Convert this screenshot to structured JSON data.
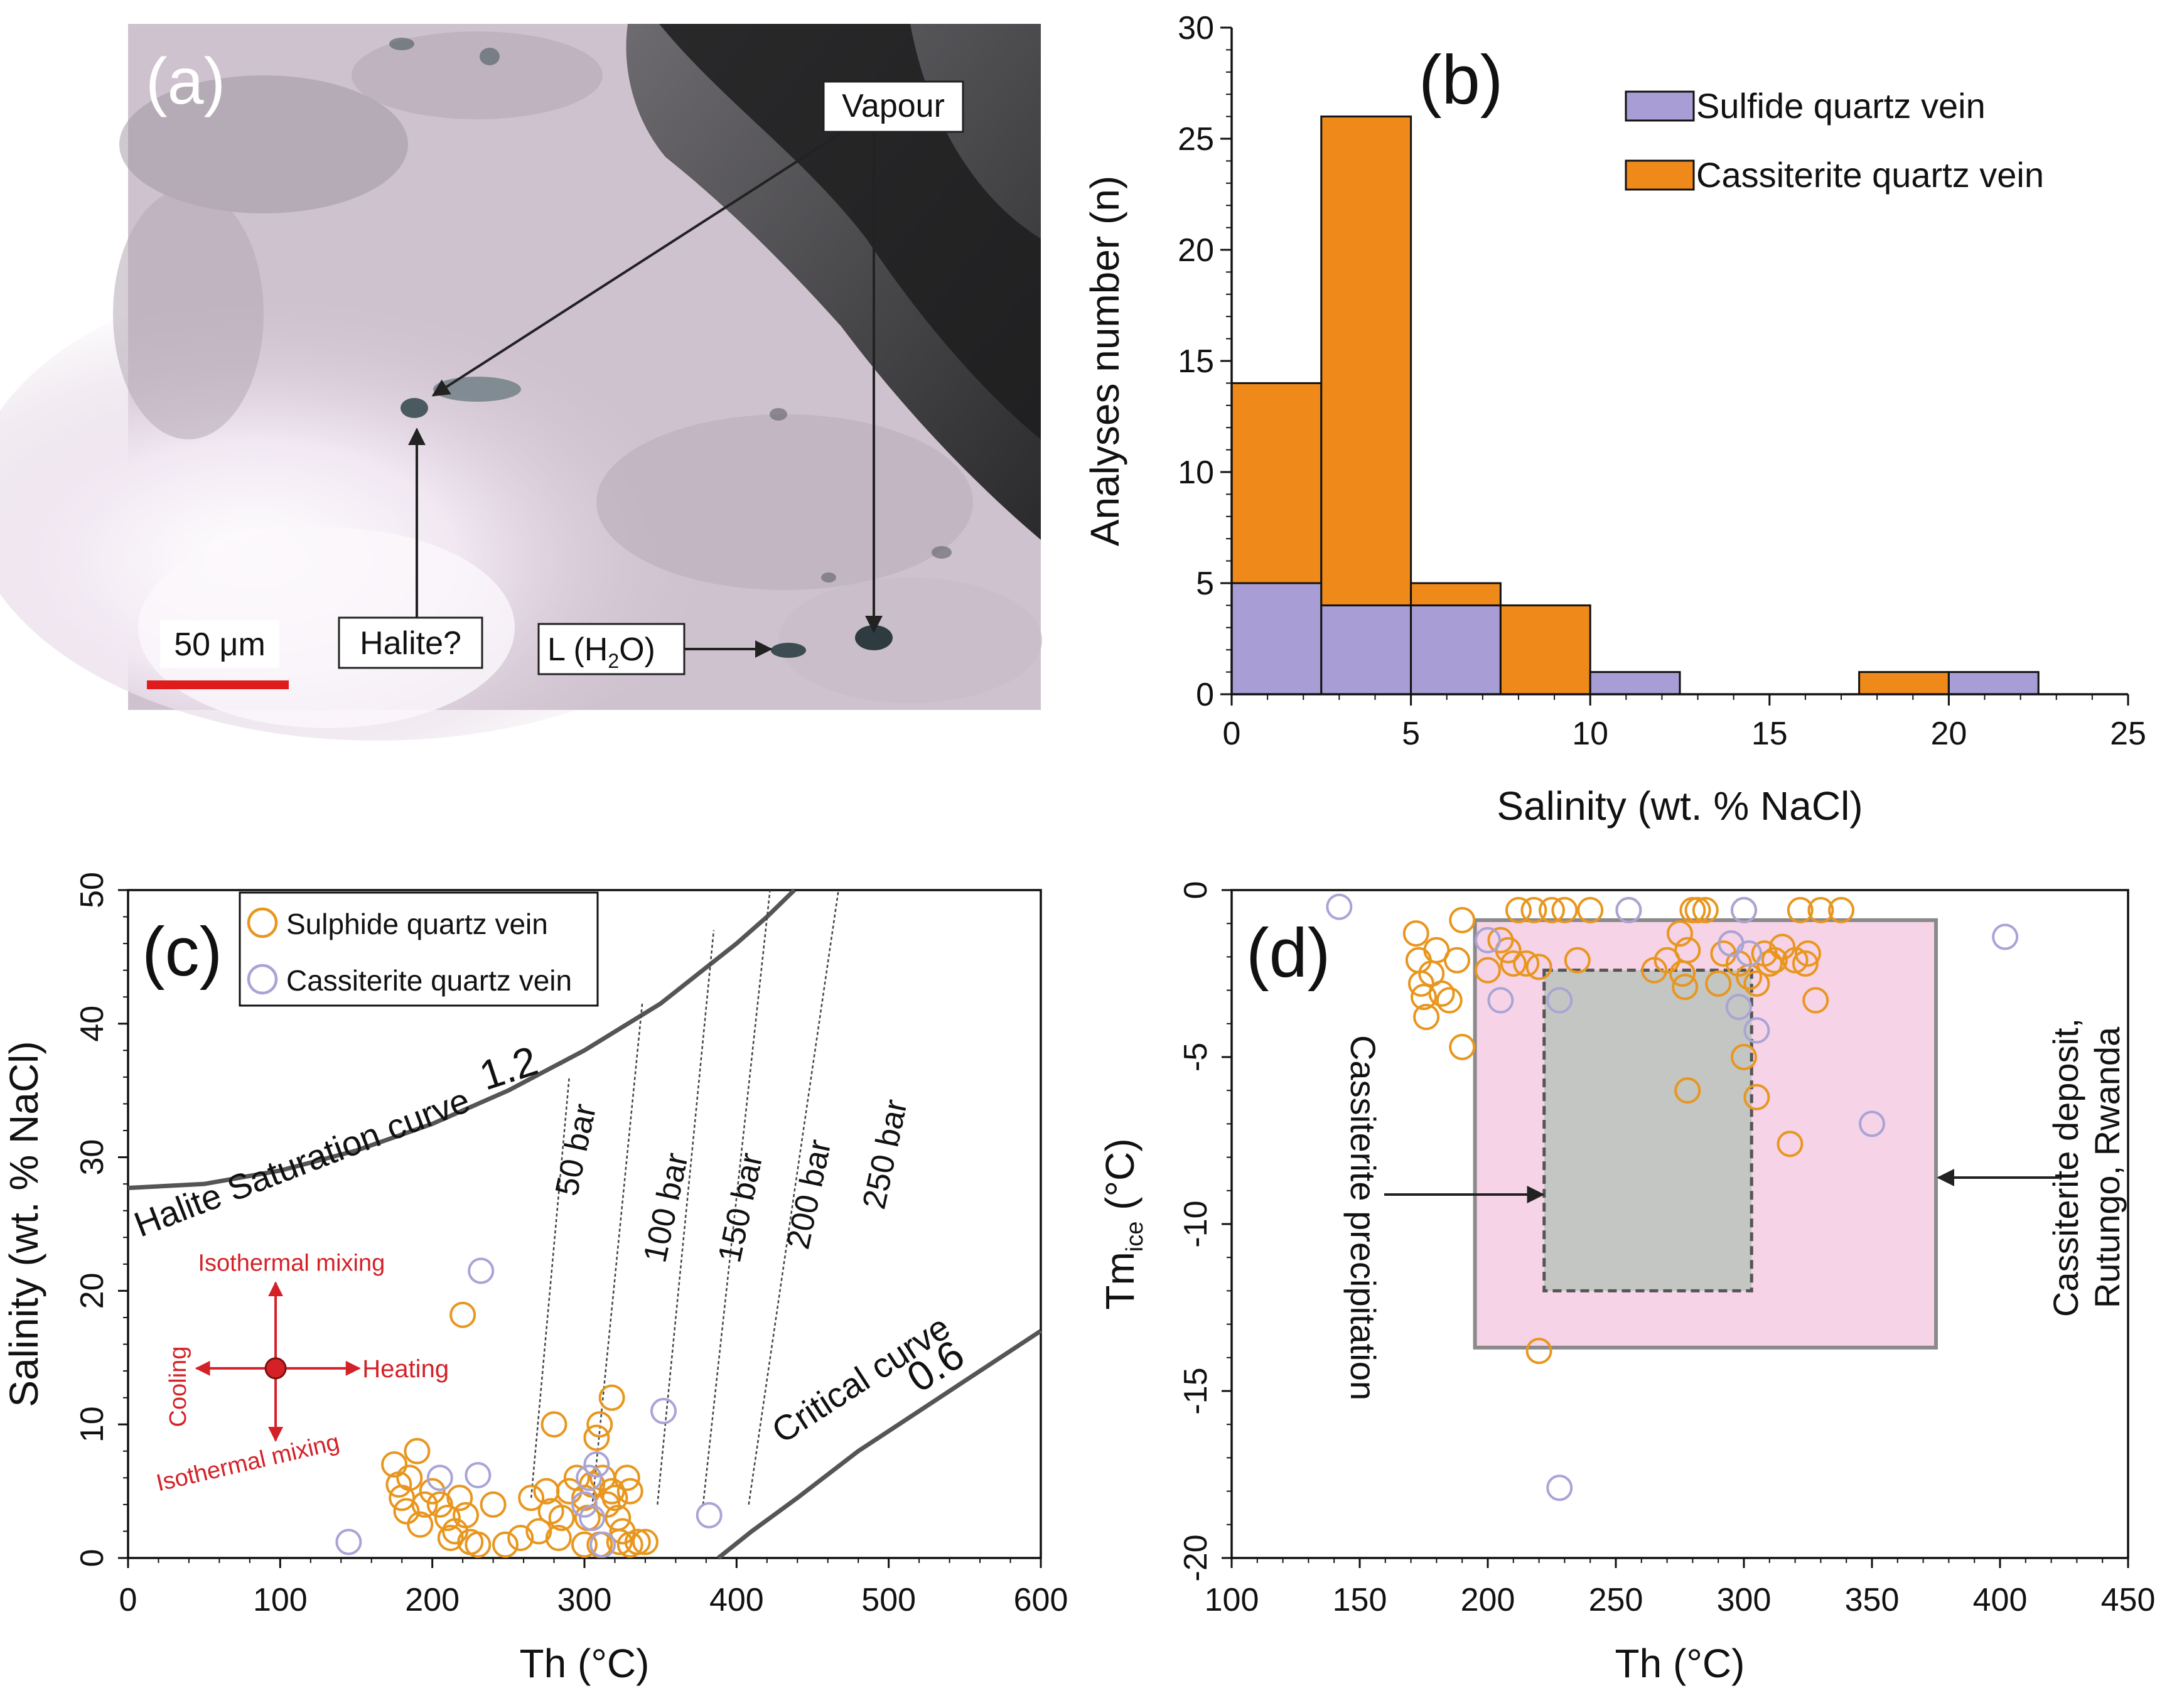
{
  "panels": {
    "a": {
      "label": "(a)",
      "annotations": {
        "vapour": "Vapour",
        "halite": "Halite?",
        "liquid_main": "L (H",
        "liquid_sub": "2",
        "liquid_end": "O)"
      },
      "scale_bar": "50 μm"
    },
    "d_annotations": {
      "precipitation": "Cassiterite precipitation",
      "deposit_line1": "Cassiterite deposit,",
      "deposit_line2": "Rutungo, Rwanda",
      "ylabel_main": "Tm",
      "ylabel_sub": "ice",
      "ylabel_end": " (°C)"
    },
    "c_annotations": {
      "halite_curve": "Halite  Saturation curve",
      "halite_value": "1.2",
      "critical_curve": "Critical curve",
      "critical_value": "0.6",
      "isobars": [
        "50 bar",
        "100 bar",
        "150 bar",
        "200 bar",
        "250 bar"
      ],
      "arrows": {
        "isothermal_up": "Isothermal mixing",
        "isothermal_down": "Isothermal mixing",
        "heating": "Heating",
        "cooling": "Cooling"
      }
    }
  },
  "colors": {
    "sulfide": "#a89dd4",
    "cassiterite": "#ef8a1a",
    "orange_marker": "#e8961e",
    "purple_marker": "#a8a4d6",
    "pink_box": "#f6d3e6",
    "gray_box": "#c3c6c2",
    "red": "#d42128"
  },
  "chart_data": [
    {
      "id": "b",
      "type": "bar",
      "panel_label": "(b)",
      "stacked": true,
      "bin_edges": [
        0,
        2.5,
        5,
        7.5,
        10,
        12.5,
        15,
        17.5,
        20,
        22.5
      ],
      "series": [
        {
          "name": "Sulfide quartz vein",
          "values": [
            5,
            4,
            4,
            0,
            1,
            0,
            0,
            0,
            1
          ]
        },
        {
          "name": "Cassiterite quartz vein",
          "values": [
            9,
            22,
            1,
            4,
            0,
            0,
            0,
            1,
            0
          ]
        }
      ],
      "xlabel": "Salinity (wt. % NaCl)",
      "ylabel": "Analyses number (n)",
      "xlim": [
        0,
        25
      ],
      "ylim": [
        0,
        30
      ],
      "xticks": [
        0,
        5,
        10,
        15,
        20,
        25
      ],
      "yticks": [
        0,
        5,
        10,
        15,
        20,
        25,
        30
      ],
      "legend": "top-right"
    },
    {
      "id": "c",
      "type": "scatter",
      "panel_label": "(c)",
      "xlabel": "Th (°C)",
      "ylabel": "Salinity (wt. % NaCl)",
      "xlim": [
        0,
        600
      ],
      "ylim": [
        0,
        50
      ],
      "xticks": [
        0,
        100,
        200,
        300,
        400,
        500,
        600
      ],
      "yticks": [
        0,
        10,
        20,
        30,
        40,
        50
      ],
      "legend": "top-left",
      "series": [
        {
          "name": "Sulphide quartz vein",
          "marker": "orange",
          "points": [
            [
              175,
              7
            ],
            [
              178,
              5.5
            ],
            [
              180,
              4.5
            ],
            [
              183,
              3.5
            ],
            [
              185,
              6
            ],
            [
              192,
              2.5
            ],
            [
              195,
              4
            ],
            [
              190,
              8
            ],
            [
              200,
              5
            ],
            [
              205,
              4
            ],
            [
              210,
              3
            ],
            [
              215,
              2
            ],
            [
              218,
              4.5
            ],
            [
              222,
              3.2
            ],
            [
              225,
              1.2
            ],
            [
              212,
              1.5
            ],
            [
              230,
              1
            ],
            [
              240,
              4
            ],
            [
              248,
              1
            ],
            [
              258,
              1.5
            ],
            [
              220,
              18.2
            ],
            [
              265,
              4.5
            ],
            [
              270,
              2
            ],
            [
              275,
              5
            ],
            [
              278,
              3.5
            ],
            [
              280,
              10
            ],
            [
              283,
              1.5
            ],
            [
              285,
              3
            ],
            [
              290,
              5
            ],
            [
              295,
              6
            ],
            [
              300,
              4.5
            ],
            [
              302,
              3
            ],
            [
              305,
              5.5
            ],
            [
              308,
              9
            ],
            [
              310,
              10
            ],
            [
              312,
              6
            ],
            [
              315,
              4
            ],
            [
              318,
              5
            ],
            [
              320,
              4.5
            ],
            [
              322,
              3
            ],
            [
              325,
              2
            ],
            [
              328,
              6
            ],
            [
              300,
              1
            ],
            [
              310,
              1
            ],
            [
              318,
              12
            ],
            [
              323,
              1.2
            ],
            [
              330,
              1
            ],
            [
              335,
              1.2
            ],
            [
              340,
              1.2
            ],
            [
              330,
              5
            ]
          ]
        },
        {
          "name": "Cassiterite quartz vein",
          "marker": "purple",
          "points": [
            [
              145,
              1.2
            ],
            [
              205,
              6
            ],
            [
              230,
              6.2
            ],
            [
              232,
              21.5
            ],
            [
              300,
              4
            ],
            [
              303,
              6
            ],
            [
              305,
              3
            ],
            [
              308,
              7
            ],
            [
              312,
              1
            ],
            [
              352,
              11
            ],
            [
              382,
              3.2
            ]
          ]
        }
      ],
      "curves": [
        {
          "name": "Halite Saturation curve",
          "value": 1.2,
          "points": [
            [
              0,
              27.7
            ],
            [
              50,
              28
            ],
            [
              100,
              29
            ],
            [
              150,
              30.5
            ],
            [
              200,
              32.5
            ],
            [
              250,
              35
            ],
            [
              300,
              38
            ],
            [
              350,
              41.5
            ],
            [
              400,
              46
            ],
            [
              420,
              48
            ],
            [
              438,
              50
            ]
          ]
        },
        {
          "name": "Critical curve",
          "value": 0.6,
          "points": [
            [
              388,
              0
            ],
            [
              410,
              2
            ],
            [
              440,
              4.5
            ],
            [
              480,
              8
            ],
            [
              520,
              11
            ],
            [
              560,
              14
            ],
            [
              600,
              17
            ]
          ]
        }
      ],
      "isobars": [
        {
          "label": "50 bar",
          "from": [
            265,
            4.5
          ],
          "to": [
            290,
            36
          ]
        },
        {
          "label": "100 bar",
          "from": [
            305,
            3.8
          ],
          "to": [
            338,
            41.5
          ]
        },
        {
          "label": "150 bar",
          "from": [
            348,
            4
          ],
          "to": [
            385,
            47
          ]
        },
        {
          "label": "200 bar",
          "from": [
            378,
            4
          ],
          "to": [
            422,
            50
          ]
        },
        {
          "label": "250 bar",
          "from": [
            408,
            4
          ],
          "to": [
            467,
            50
          ]
        }
      ],
      "arrow_origin": [
        97,
        14.2
      ]
    },
    {
      "id": "d",
      "type": "scatter",
      "panel_label": "(d)",
      "xlabel": "Th (°C)",
      "ylabel": "Tm ice (°C)",
      "xlim": [
        100,
        450
      ],
      "ylim": [
        -20,
        0
      ],
      "xticks": [
        100,
        150,
        200,
        250,
        300,
        350,
        400,
        450
      ],
      "yticks": [
        0,
        -5,
        -10,
        -15,
        -20
      ],
      "regions": [
        {
          "name": "Cassiterite deposit, Rutungo, Rwanda",
          "x": [
            195,
            375
          ],
          "y": [
            -13.7,
            -0.9
          ]
        },
        {
          "name": "Cassiterite precipitation",
          "x": [
            222,
            303
          ],
          "y": [
            -12,
            -2.4
          ]
        }
      ],
      "series": [
        {
          "name": "Sulphide quartz vein",
          "marker": "orange",
          "points": [
            [
              172,
              -1.3
            ],
            [
              173,
              -2.1
            ],
            [
              174,
              -2.8
            ],
            [
              175,
              -3.2
            ],
            [
              176,
              -3.8
            ],
            [
              178,
              -2.5
            ],
            [
              180,
              -1.8
            ],
            [
              182,
              -3.1
            ],
            [
              185,
              -3.3
            ],
            [
              188,
              -2.1
            ],
            [
              190,
              -0.9
            ],
            [
              190,
              -4.7
            ],
            [
              200,
              -2.4
            ],
            [
              205,
              -1.5
            ],
            [
              208,
              -1.8
            ],
            [
              210,
              -2.2
            ],
            [
              212,
              -0.6
            ],
            [
              215,
              -2.2
            ],
            [
              218,
              -0.6
            ],
            [
              220,
              -2.3
            ],
            [
              220,
              -13.8
            ],
            [
              225,
              -0.6
            ],
            [
              230,
              -0.6
            ],
            [
              235,
              -2.1
            ],
            [
              240,
              -0.6
            ],
            [
              255,
              -0.6
            ],
            [
              265,
              -2.4
            ],
            [
              270,
              -2.1
            ],
            [
              275,
              -1.3
            ],
            [
              276,
              -2.5
            ],
            [
              277,
              -2.9
            ],
            [
              278,
              -1.8
            ],
            [
              280,
              -0.6
            ],
            [
              282,
              -0.6
            ],
            [
              278,
              -6
            ],
            [
              285,
              -0.6
            ],
            [
              290,
              -2.8
            ],
            [
              292,
              -1.9
            ],
            [
              295,
              -1.6
            ],
            [
              298,
              -2.2
            ],
            [
              300,
              -5
            ],
            [
              300,
              -0.6
            ],
            [
              302,
              -2.6
            ],
            [
              305,
              -6.2
            ],
            [
              305,
              -2.8
            ],
            [
              308,
              -1.9
            ],
            [
              310,
              -2.2
            ],
            [
              312,
              -2.1
            ],
            [
              315,
              -1.7
            ],
            [
              318,
              -7.6
            ],
            [
              320,
              -2.1
            ],
            [
              322,
              -0.6
            ],
            [
              324,
              -2.2
            ],
            [
              325,
              -1.9
            ],
            [
              328,
              -3.3
            ],
            [
              330,
              -0.6
            ],
            [
              338,
              -0.6
            ]
          ]
        },
        {
          "name": "Cassiterite quartz vein",
          "marker": "purple",
          "points": [
            [
              142,
              -0.5
            ],
            [
              200,
              -1.5
            ],
            [
              205,
              -3.3
            ],
            [
              228,
              -3.3
            ],
            [
              228,
              -17.9
            ],
            [
              255,
              -0.6
            ],
            [
              295,
              -1.6
            ],
            [
              298,
              -3.5
            ],
            [
              300,
              -0.6
            ],
            [
              302,
              -1.9
            ],
            [
              305,
              -4.2
            ],
            [
              350,
              -7
            ],
            [
              402,
              -1.4
            ]
          ]
        }
      ]
    }
  ]
}
